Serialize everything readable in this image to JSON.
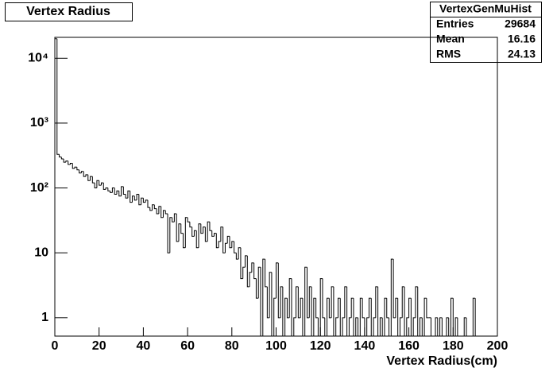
{
  "chart_data": {
    "type": "histogram",
    "title": "Vertex Radius",
    "x_label": "Vertex Radius(cm)",
    "color": "#000000",
    "log_y": true,
    "grid": false,
    "xlim": [
      0,
      200
    ],
    "xticks": [
      0,
      20,
      40,
      60,
      80,
      100,
      120,
      140,
      160,
      180,
      200
    ],
    "ylim": [
      0.52,
      21000
    ],
    "yticks": [
      1,
      10,
      {
        "value": 100,
        "label": "10²"
      },
      {
        "value": 1000,
        "label": "10³"
      },
      {
        "value": 10000,
        "label": "10⁴"
      }
    ],
    "stats": {
      "name": "VertexGenMuHist",
      "rows": [
        [
          "Entries",
          "29684"
        ],
        [
          "Mean",
          "16.16"
        ],
        [
          "RMS",
          "24.13"
        ]
      ]
    },
    "bins": [
      0,
      1,
      2,
      3,
      4,
      5,
      6,
      7,
      8,
      9,
      10,
      11,
      12,
      13,
      14,
      15,
      16,
      17,
      18,
      19,
      20,
      21,
      22,
      23,
      24,
      25,
      26,
      27,
      28,
      29,
      30,
      31,
      32,
      33,
      34,
      35,
      36,
      37,
      38,
      39,
      40,
      41,
      42,
      43,
      44,
      45,
      46,
      47,
      48,
      49,
      50,
      51,
      52,
      53,
      54,
      55,
      56,
      57,
      58,
      59,
      60,
      61,
      62,
      63,
      64,
      65,
      66,
      67,
      68,
      69,
      70,
      71,
      72,
      73,
      74,
      75,
      76,
      77,
      78,
      79,
      80,
      81,
      82,
      83,
      84,
      85,
      86,
      87,
      88,
      89,
      90,
      91,
      92,
      93,
      94,
      95,
      96,
      97,
      98,
      99,
      100,
      101,
      102,
      103,
      104,
      105,
      106,
      107,
      108,
      109,
      110,
      111,
      112,
      113,
      114,
      115,
      116,
      117,
      118,
      119,
      120,
      121,
      122,
      123,
      124,
      125,
      126,
      127,
      128,
      129,
      130,
      131,
      132,
      133,
      134,
      135,
      136,
      137,
      138,
      139,
      140,
      141,
      142,
      143,
      144,
      145,
      146,
      147,
      148,
      149,
      150,
      151,
      152,
      153,
      154,
      155,
      156,
      157,
      158,
      159,
      160,
      161,
      162,
      163,
      164,
      165,
      166,
      167,
      168,
      169,
      170,
      171,
      172,
      173,
      174,
      175,
      176,
      177,
      178,
      179,
      180,
      181,
      182,
      183,
      184,
      185,
      186,
      187,
      188,
      189,
      190,
      191,
      192,
      193,
      194,
      195,
      196,
      197,
      198,
      199,
      200
    ],
    "values": [
      20000,
      330,
      300,
      280,
      250,
      260,
      230,
      240,
      200,
      210,
      190,
      170,
      180,
      150,
      160,
      130,
      150,
      120,
      100,
      130,
      110,
      120,
      95,
      100,
      90,
      85,
      100,
      80,
      90,
      75,
      105,
      80,
      70,
      90,
      60,
      75,
      65,
      80,
      55,
      70,
      60,
      65,
      50,
      45,
      55,
      48,
      40,
      52,
      35,
      45,
      40,
      10,
      35,
      30,
      40,
      15,
      28,
      20,
      12,
      35,
      30,
      25,
      18,
      22,
      12,
      28,
      20,
      25,
      15,
      30,
      22,
      18,
      20,
      12,
      15,
      25,
      10,
      14,
      18,
      12,
      15,
      10,
      8,
      12,
      4,
      6,
      9,
      3,
      5,
      7,
      4,
      2,
      6,
      0,
      8,
      3,
      1,
      5,
      0,
      2,
      7,
      1,
      3,
      0,
      2,
      1,
      4,
      0,
      1,
      3,
      1,
      2,
      0,
      6,
      1,
      3,
      0,
      2,
      1,
      0,
      4,
      1,
      0,
      2,
      1,
      3,
      0,
      1,
      2,
      0,
      1,
      3,
      0,
      1,
      2,
      0,
      1,
      0,
      2,
      1,
      0,
      1,
      2,
      0,
      1,
      3,
      0,
      1,
      0,
      2,
      1,
      0,
      8,
      1,
      2,
      0,
      1,
      3,
      0,
      1,
      2,
      0,
      1,
      3,
      0,
      1,
      0,
      2,
      1,
      1,
      0,
      0,
      1,
      0,
      1,
      0,
      0,
      1,
      0,
      2,
      0,
      1,
      0,
      0,
      0,
      1,
      0,
      0,
      0,
      2,
      0,
      0,
      0,
      0,
      0,
      0,
      0,
      0,
      0,
      0
    ]
  }
}
